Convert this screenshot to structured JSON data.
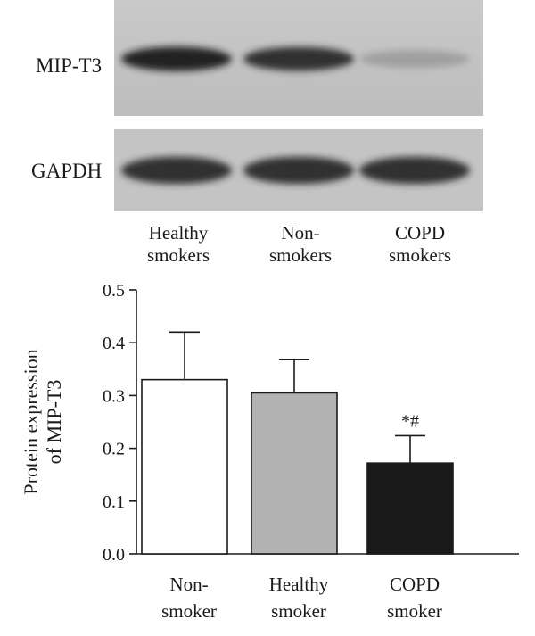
{
  "blot": {
    "rows": [
      {
        "label": "MIP-T3",
        "band_intensity": [
          0.95,
          0.9,
          0.35
        ]
      },
      {
        "label": "GAPDH",
        "band_intensity": [
          0.9,
          0.9,
          0.9
        ]
      }
    ],
    "lanes": [
      {
        "line1": "Healthy",
        "line2": "smokers"
      },
      {
        "line1": "Non-",
        "line2": "smokers"
      },
      {
        "line1": "COPD",
        "line2": "smokers"
      }
    ]
  },
  "chart_data": {
    "type": "bar",
    "categories": [
      {
        "line1": "Non-",
        "line2": "smoker"
      },
      {
        "line1": "Healthy",
        "line2": "smoker"
      },
      {
        "line1": "COPD",
        "line2": "smoker"
      }
    ],
    "values": [
      0.33,
      0.305,
      0.172
    ],
    "errors": [
      0.09,
      0.063,
      0.052
    ],
    "bar_colors": [
      "#ffffff",
      "#b3b3b3",
      "#1a1a1a"
    ],
    "annotations": [
      "",
      "",
      "*#"
    ],
    "ylabel_line1": "Protein expression",
    "ylabel_line2": "of MIP-T3",
    "ylim": [
      0,
      0.5
    ],
    "yticks": [
      "0.0",
      "0.1",
      "0.2",
      "0.3",
      "0.4",
      "0.5"
    ],
    "grid": false
  }
}
